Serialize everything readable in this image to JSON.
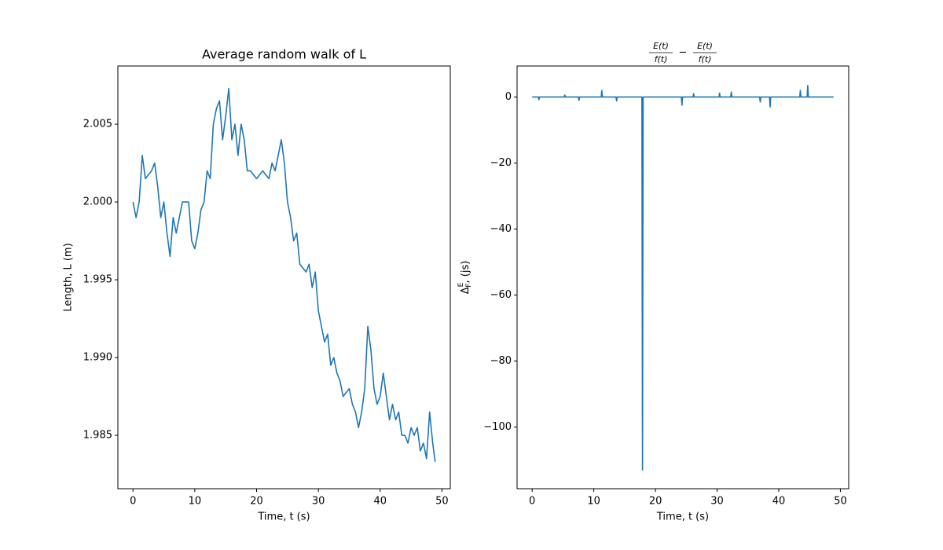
{
  "chart_data": [
    {
      "type": "line",
      "title": "Average random walk of L",
      "xlabel": "Time, t (s)",
      "ylabel": "Length, L (m)",
      "xlim": [
        -2.445,
        51.345
      ],
      "ylim": [
        1.98157,
        2.00874
      ],
      "xticks": [
        0,
        10,
        20,
        30,
        40,
        50
      ],
      "yticks": [
        1.985,
        {
          "value": 1.99,
          "label": "1.990"
        },
        1.995,
        {
          "value": 2.0,
          "label": "2.000"
        },
        2.005
      ],
      "series": [
        {
          "color": "#1f77b4",
          "x": [
            0,
            0.5,
            1,
            1.5,
            2,
            3,
            3.5,
            4,
            4.5,
            5,
            5.5,
            6,
            6.5,
            7,
            8,
            9,
            9.5,
            10,
            10.5,
            11,
            11.5,
            12,
            12.5,
            13,
            13.5,
            14,
            14.5,
            15,
            15.5,
            16,
            16.5,
            17,
            17.5,
            18,
            18.5,
            19,
            20,
            21,
            22,
            22.5,
            23,
            24,
            24.5,
            25,
            25.5,
            26,
            26.5,
            27,
            28,
            28.5,
            29,
            29.5,
            30,
            30.5,
            31,
            31.5,
            32,
            32.5,
            33,
            33.5,
            34,
            35,
            35.5,
            36,
            36.5,
            37,
            37.5,
            38,
            38.5,
            39,
            39.5,
            40,
            40.5,
            41,
            41.5,
            42,
            42.5,
            43,
            43.5,
            44,
            44.5,
            45,
            45.5,
            46,
            46.5,
            47,
            47.5,
            48,
            48.5,
            48.9
          ],
          "values": [
            2.0,
            1.999,
            2.0,
            2.003,
            2.0015,
            2.002,
            2.0025,
            2.001,
            1.999,
            2.0,
            1.998,
            1.9965,
            1.999,
            1.998,
            2.0,
            2.0,
            1.9975,
            1.997,
            1.998,
            1.9995,
            2.0,
            2.002,
            2.0015,
            2.005,
            2.006,
            2.0065,
            2.004,
            2.0055,
            2.0073,
            2.004,
            2.005,
            2.003,
            2.005,
            2.004,
            2.002,
            2.002,
            2.0015,
            2.002,
            2.0015,
            2.0025,
            2.002,
            2.004,
            2.0025,
            2.0,
            1.999,
            1.9975,
            1.998,
            1.996,
            1.9955,
            1.996,
            1.9945,
            1.9955,
            1.993,
            1.992,
            1.991,
            1.9915,
            1.9895,
            1.99,
            1.989,
            1.9885,
            1.9875,
            1.988,
            1.987,
            1.9865,
            1.9855,
            1.9865,
            1.988,
            1.992,
            1.9905,
            1.988,
            1.987,
            1.9875,
            1.989,
            1.9875,
            1.986,
            1.987,
            1.986,
            1.9865,
            1.985,
            1.985,
            1.9845,
            1.9855,
            1.985,
            1.9855,
            1.984,
            1.9845,
            1.9835,
            1.9865,
            1.9845,
            1.9833
          ]
        }
      ]
    },
    {
      "type": "line",
      "title_fraction": [
        {
          "numerator": "E(t)",
          "denominator": "f(t)"
        },
        {
          "numerator": "E(t)",
          "denominator": "f(t)"
        }
      ],
      "title_operator": "−",
      "xlabel": "Time, t (s)",
      "ylabel": {
        "base": "Δ",
        "sup": "E",
        "sub": "F",
        "rest": ", (js)"
      },
      "xlim": [
        -2.445,
        51.345
      ],
      "ylim": [
        -118.7,
        9.4
      ],
      "xticks": [
        0,
        10,
        20,
        30,
        40,
        50
      ],
      "yticks": [
        0,
        {
          "value": -20,
          "label": "−20"
        },
        {
          "value": -40,
          "label": "−40"
        },
        {
          "value": -60,
          "label": "−60"
        },
        {
          "value": -80,
          "label": "−80"
        },
        {
          "value": -100,
          "label": "−100"
        }
      ],
      "series": [
        {
          "color": "#1f77b4",
          "x": [
            0,
            1.0,
            1.1,
            1.2,
            5.2,
            5.3,
            5.4,
            7.5,
            7.6,
            7.7,
            11.2,
            11.3,
            11.4,
            13.6,
            13.7,
            13.8,
            17.8,
            17.9,
            18.0,
            24.2,
            24.3,
            24.4,
            26.1,
            26.2,
            26.3,
            30.3,
            30.4,
            30.5,
            32.2,
            32.3,
            32.4,
            36.9,
            37.0,
            37.1,
            38.5,
            38.6,
            38.7,
            43.4,
            43.5,
            43.6,
            44.6,
            44.7,
            44.8,
            48.9
          ],
          "values": [
            0,
            0,
            -0.8,
            0,
            0,
            0.6,
            0,
            0,
            -1,
            0,
            0,
            2,
            0,
            0,
            -1.2,
            0,
            0,
            -113,
            0,
            0,
            -2.5,
            0,
            0,
            1,
            0,
            0,
            1.2,
            0,
            0,
            1.5,
            0,
            0,
            -1.5,
            0,
            0,
            -3,
            0,
            0,
            2,
            0,
            0,
            3.5,
            0,
            0
          ]
        }
      ]
    }
  ]
}
